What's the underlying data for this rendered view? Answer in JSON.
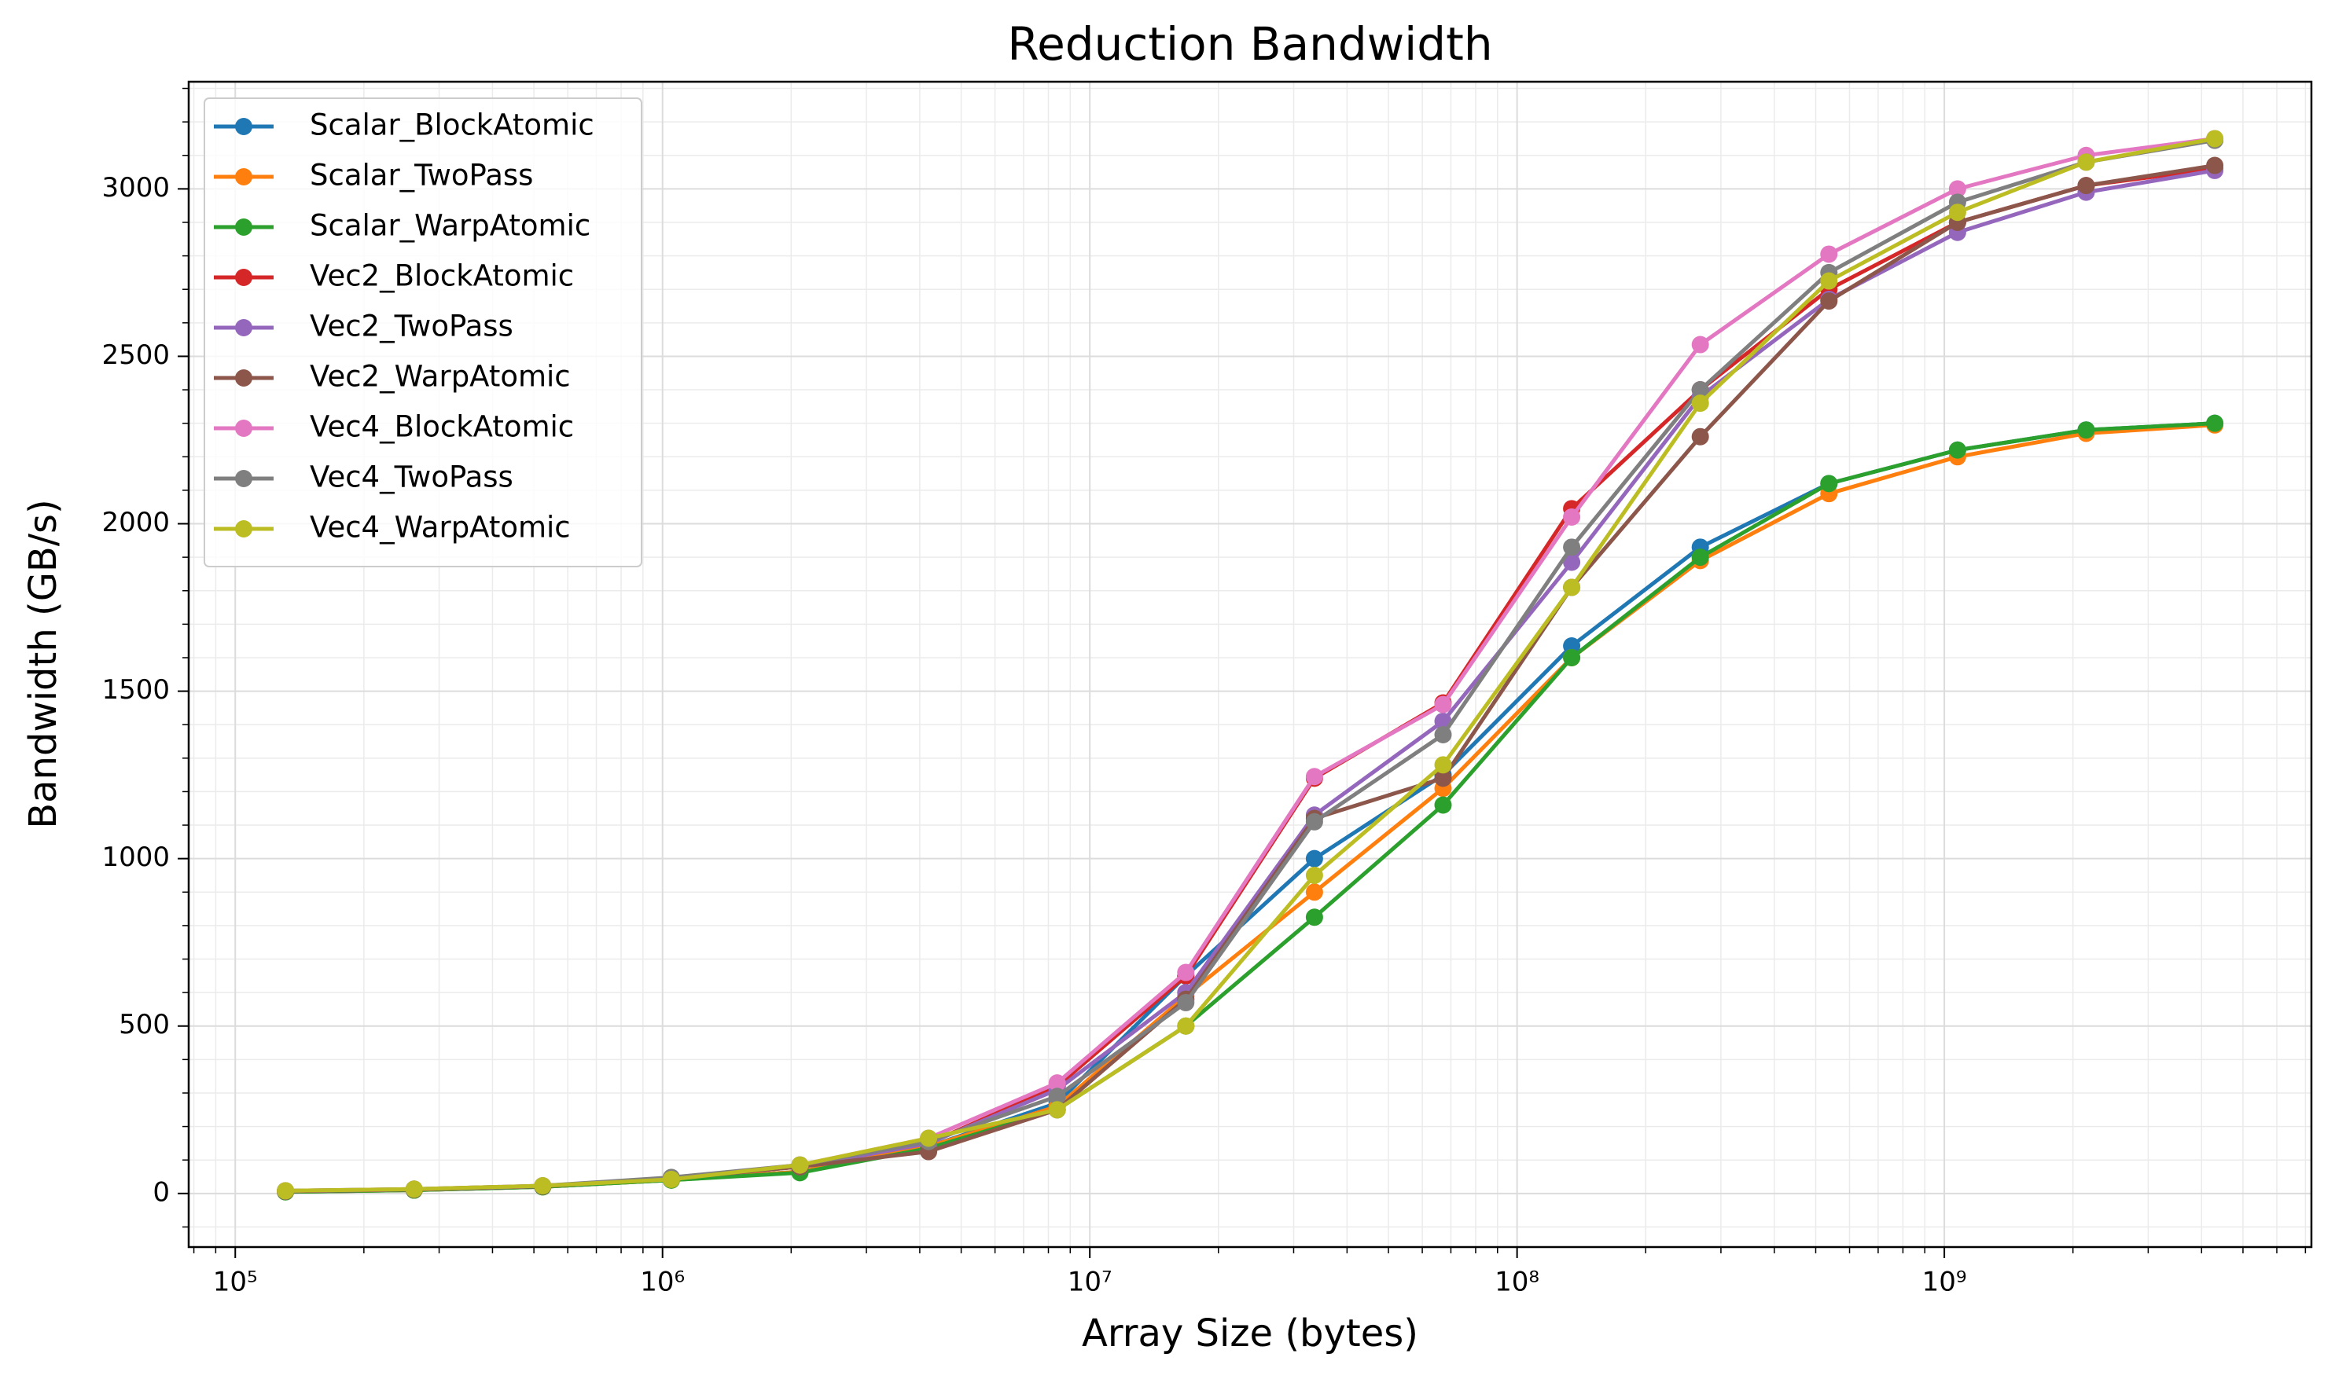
{
  "chart_data": {
    "type": "line",
    "title": "Reduction Bandwidth",
    "x_label": "Array Size (bytes)",
    "y_label": "Bandwidth (GB/s)",
    "x": [
      131072,
      262144,
      524288,
      1048576,
      2097152,
      4194304,
      8388608,
      16777216,
      33554432,
      67108864,
      134217728,
      268435456,
      536870912,
      1073741824,
      2147483648,
      4294967296
    ],
    "xscale": "log",
    "xlim": [
      77800,
      7230000000
    ],
    "xticks": [
      {
        "value": 100000,
        "label": "10⁵"
      },
      {
        "value": 1000000,
        "label": "10⁶"
      },
      {
        "value": 10000000,
        "label": "10⁷"
      },
      {
        "value": 100000000,
        "label": "10⁸"
      },
      {
        "value": 1000000000,
        "label": "10⁹"
      }
    ],
    "ylim": [
      -160,
      3320
    ],
    "yticks": [
      0,
      500,
      1000,
      1500,
      2000,
      2500,
      3000
    ],
    "grid": true,
    "minor_grid": true,
    "legend": "upper left",
    "series": [
      {
        "name": "Scalar_BlockAtomic",
        "color": "#1f77b4",
        "values": [
          5,
          10,
          20,
          40,
          65,
          140,
          270,
          650,
          1000,
          1250,
          1635,
          1930,
          2120,
          2220,
          2280,
          2300
        ]
      },
      {
        "name": "Scalar_TwoPass",
        "color": "#ff7f0e",
        "values": [
          5,
          10,
          20,
          40,
          65,
          140,
          260,
          590,
          900,
          1210,
          1600,
          1890,
          2090,
          2200,
          2270,
          2295
        ]
      },
      {
        "name": "Scalar_WarpAtomic",
        "color": "#2ca02c",
        "values": [
          5,
          10,
          20,
          40,
          62,
          135,
          250,
          500,
          825,
          1160,
          1600,
          1900,
          2120,
          2220,
          2280,
          2300
        ]
      },
      {
        "name": "Vec2_BlockAtomic",
        "color": "#d62728",
        "values": [
          7,
          12,
          22,
          45,
          80,
          150,
          320,
          650,
          1240,
          1465,
          2045,
          2400,
          2700,
          2900,
          3010,
          3060
        ]
      },
      {
        "name": "Vec2_TwoPass",
        "color": "#9467bd",
        "values": [
          7,
          12,
          22,
          45,
          80,
          150,
          310,
          600,
          1130,
          1410,
          1885,
          2380,
          2670,
          2870,
          2990,
          3055
        ]
      },
      {
        "name": "Vec2_WarpAtomic",
        "color": "#8c564b",
        "values": [
          7,
          12,
          22,
          45,
          80,
          125,
          250,
          580,
          1120,
          1240,
          1810,
          2260,
          2665,
          2900,
          3010,
          3070
        ]
      },
      {
        "name": "Vec4_BlockAtomic",
        "color": "#e377c2",
        "values": [
          8,
          13,
          23,
          45,
          85,
          165,
          330,
          660,
          1245,
          1460,
          2020,
          2535,
          2805,
          3000,
          3100,
          3150
        ]
      },
      {
        "name": "Vec4_TwoPass",
        "color": "#7f7f7f",
        "values": [
          8,
          13,
          23,
          48,
          85,
          155,
          290,
          570,
          1110,
          1370,
          1930,
          2400,
          2750,
          2960,
          3080,
          3145
        ]
      },
      {
        "name": "Vec4_WarpAtomic",
        "color": "#bcbd22",
        "values": [
          8,
          13,
          23,
          42,
          85,
          165,
          250,
          500,
          950,
          1280,
          1810,
          2360,
          2725,
          2930,
          3080,
          3150
        ]
      }
    ]
  }
}
